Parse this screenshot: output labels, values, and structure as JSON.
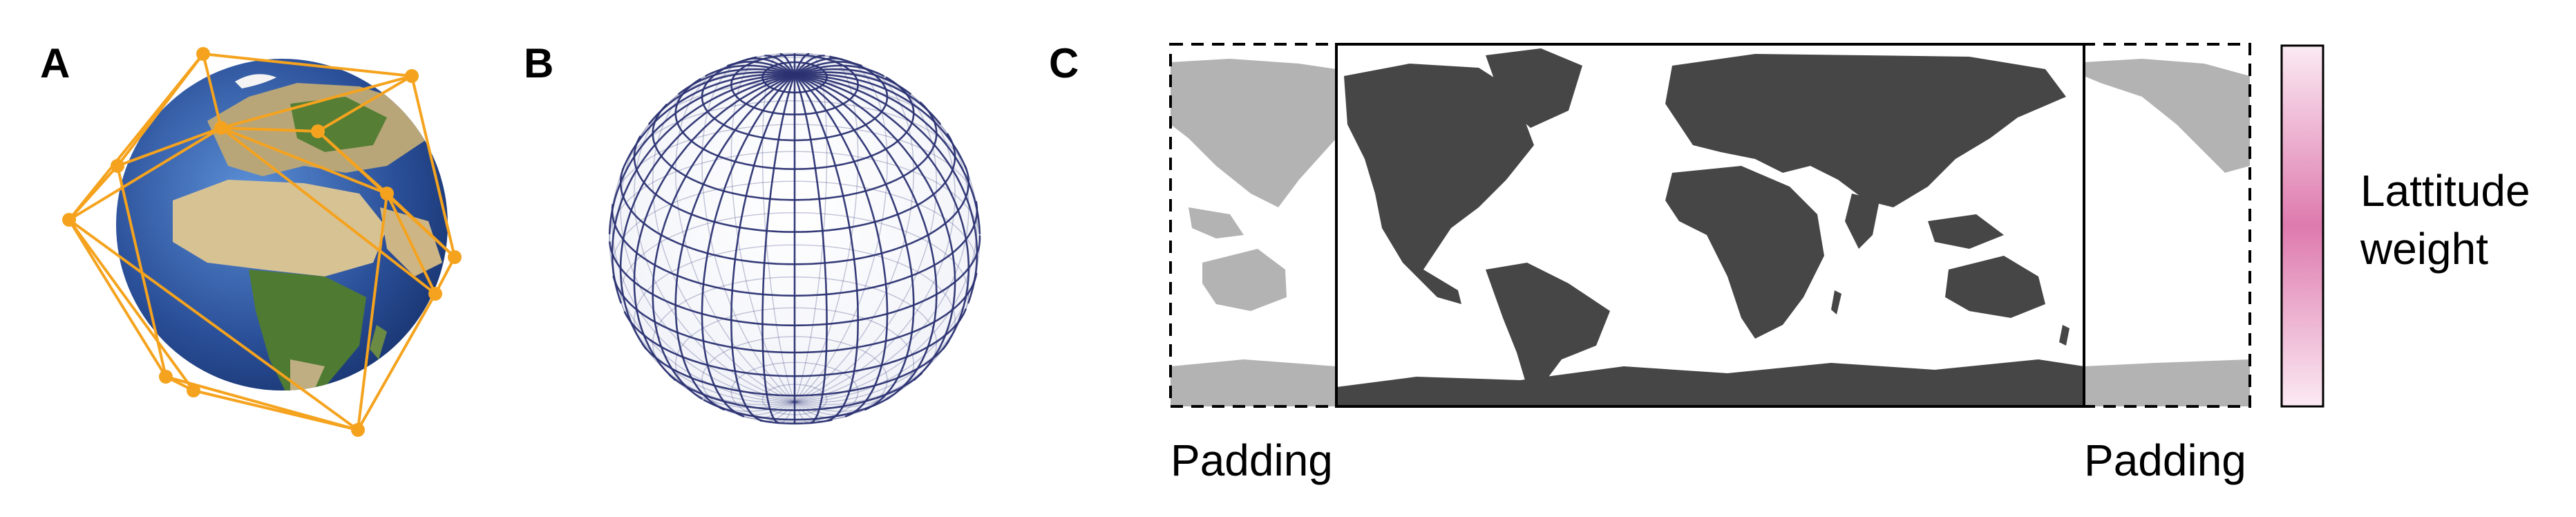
{
  "panels": [
    {
      "id": "A",
      "letter": "A"
    },
    {
      "id": "B",
      "letter": "B"
    },
    {
      "id": "C",
      "letter": "C"
    }
  ],
  "panel_c": {
    "padding_left_label": "Padding",
    "padding_right_label": "Padding",
    "colorbar_label_line1": "Lattitude",
    "colorbar_label_line2": "weight"
  },
  "colors": {
    "mesh_orange": "#f5a31e",
    "ocean_dark": "#1f3f82",
    "ocean_light": "#4a7cc4",
    "land_sand": "#c8b48a",
    "land_green": "#4f7a32",
    "grid_navy": "#2b3272",
    "land_dark": "#464646",
    "land_padding": "#b3b3b3",
    "weight_pink": "#de7aae"
  },
  "icons": {
    "panel_a": "globe-with-icosahedral-mesh",
    "panel_b": "latitude-longitude-grid-sphere",
    "panel_c": "padded-world-map"
  }
}
